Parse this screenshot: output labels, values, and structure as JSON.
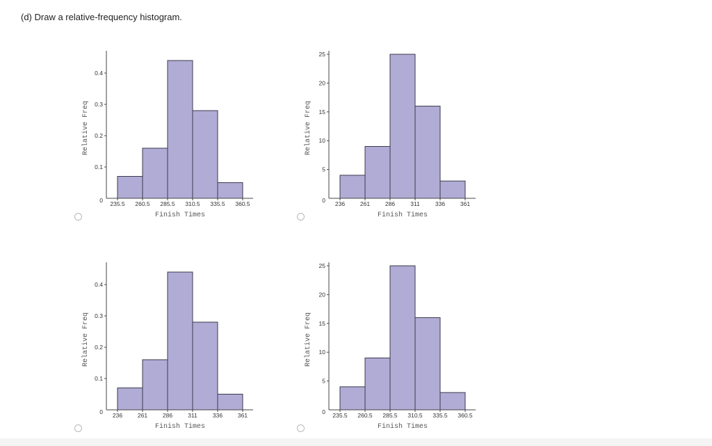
{
  "question": {
    "text": "(d) Draw a relative-frequency histogram."
  },
  "colors": {
    "bar_fill": "#b0acd6",
    "bar_stroke": "#3a3a4a",
    "axis": "#444444"
  },
  "options": [
    {
      "id": "a"
    },
    {
      "id": "b"
    },
    {
      "id": "c"
    },
    {
      "id": "d"
    }
  ],
  "chart_data": [
    {
      "type": "bar",
      "option": "a",
      "xlabel": "Finish Times",
      "ylabel": "Relative Freq",
      "x_ticks": [
        "235.5",
        "260.5",
        "285.5",
        "310.5",
        "335.5",
        "360.5"
      ],
      "bin_edges": [
        235.5,
        260.5,
        285.5,
        310.5,
        335.5,
        360.5
      ],
      "values": [
        0.07,
        0.16,
        0.44,
        0.28,
        0.05
      ],
      "y_ticks": [
        "0",
        "0.1",
        "0.2",
        "0.3",
        "0.4"
      ],
      "y_tick_values": [
        0,
        0.1,
        0.2,
        0.3,
        0.4
      ],
      "ylim": [
        0,
        0.46
      ]
    },
    {
      "type": "bar",
      "option": "b",
      "xlabel": "Finish Times",
      "ylabel": "Relative Freq",
      "x_ticks": [
        "236",
        "261",
        "286",
        "311",
        "336",
        "361"
      ],
      "bin_edges": [
        236,
        261,
        286,
        311,
        336,
        361
      ],
      "values": [
        4,
        9,
        25,
        16,
        3
      ],
      "y_ticks": [
        "0",
        "5",
        "10",
        "15",
        "20",
        "25"
      ],
      "y_tick_values": [
        0,
        5,
        10,
        15,
        20,
        25
      ],
      "ylim": [
        0,
        25
      ]
    },
    {
      "type": "bar",
      "option": "c",
      "xlabel": "Finish Times",
      "ylabel": "Relative Freq",
      "x_ticks": [
        "236",
        "261",
        "286",
        "311",
        "336",
        "361"
      ],
      "bin_edges": [
        236,
        261,
        286,
        311,
        336,
        361
      ],
      "values": [
        0.07,
        0.16,
        0.44,
        0.28,
        0.05
      ],
      "y_ticks": [
        "0",
        "0.1",
        "0.2",
        "0.3",
        "0.4"
      ],
      "y_tick_values": [
        0,
        0.1,
        0.2,
        0.3,
        0.4
      ],
      "ylim": [
        0,
        0.46
      ]
    },
    {
      "type": "bar",
      "option": "d",
      "xlabel": "Finish Times",
      "ylabel": "Relative Freq",
      "x_ticks": [
        "235.5",
        "260.5",
        "285.5",
        "310.5",
        "335.5",
        "360.5"
      ],
      "bin_edges": [
        235.5,
        260.5,
        285.5,
        310.5,
        335.5,
        360.5
      ],
      "values": [
        4,
        9,
        25,
        16,
        3
      ],
      "y_ticks": [
        "0",
        "5",
        "10",
        "15",
        "20",
        "25"
      ],
      "y_tick_values": [
        0,
        5,
        10,
        15,
        20,
        25
      ],
      "ylim": [
        0,
        25
      ]
    }
  ]
}
